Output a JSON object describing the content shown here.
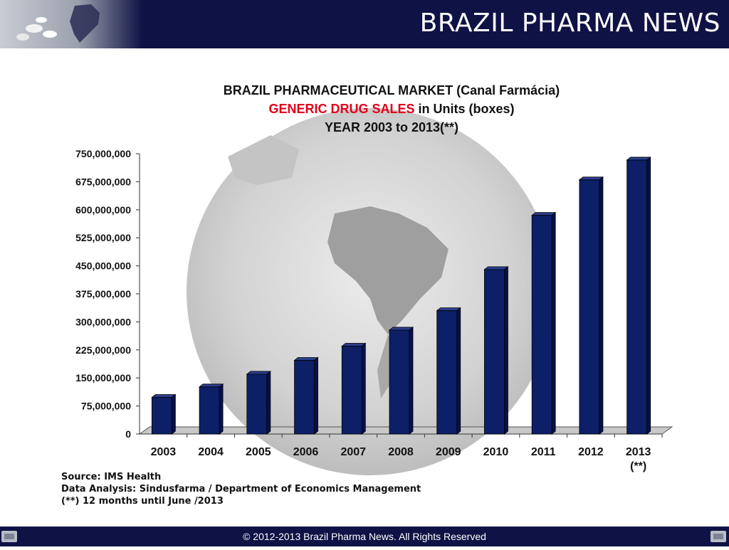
{
  "header": {
    "title": "BRAZIL PHARMA NEWS"
  },
  "chart_title": {
    "line1": "BRAZIL PHARMACEUTICAL MARKET (Canal Farmácia)",
    "line2_red": "GENERIC DRUG SALES",
    "line2_rest": " in Units (boxes)",
    "line3": "YEAR 2003 to 2013(**)"
  },
  "chart_data": {
    "type": "bar",
    "title": "BRAZIL PHARMACEUTICAL MARKET (Canal Farmácia) GENERIC DRUG SALES in Units (boxes) YEAR 2003 to 2013(**)",
    "categories": [
      "2003",
      "2004",
      "2005",
      "2006",
      "2007",
      "2008",
      "2009",
      "2010",
      "2011",
      "2012",
      "2013"
    ],
    "category_sublabels": [
      "",
      "",
      "",
      "",
      "",
      "",
      "",
      "",
      "",
      "",
      "(**)"
    ],
    "values": [
      98000000,
      126000000,
      160000000,
      197000000,
      235000000,
      278000000,
      330000000,
      440000000,
      585000000,
      680000000,
      733000000
    ],
    "ylim": [
      0,
      750000000
    ],
    "yticks": [
      "0",
      "75,000,000",
      "150,000,000",
      "225,000,000",
      "300,000,000",
      "375,000,000",
      "450,000,000",
      "525,000,000",
      "600,000,000",
      "675,000,000",
      "750,000,000"
    ],
    "xlabel": "",
    "ylabel": "",
    "grid": false,
    "legend": "none",
    "bar_color": "#0d1f66"
  },
  "source": {
    "line1": "Source: IMS Health",
    "line2": "Data Analysis: Sindusfarma / Department of Economics Management",
    "line3": "(**) 12 months until June /2013"
  },
  "footer": {
    "text": "© 2012-2013  Brazil Pharma News. All Rights Reserved"
  }
}
